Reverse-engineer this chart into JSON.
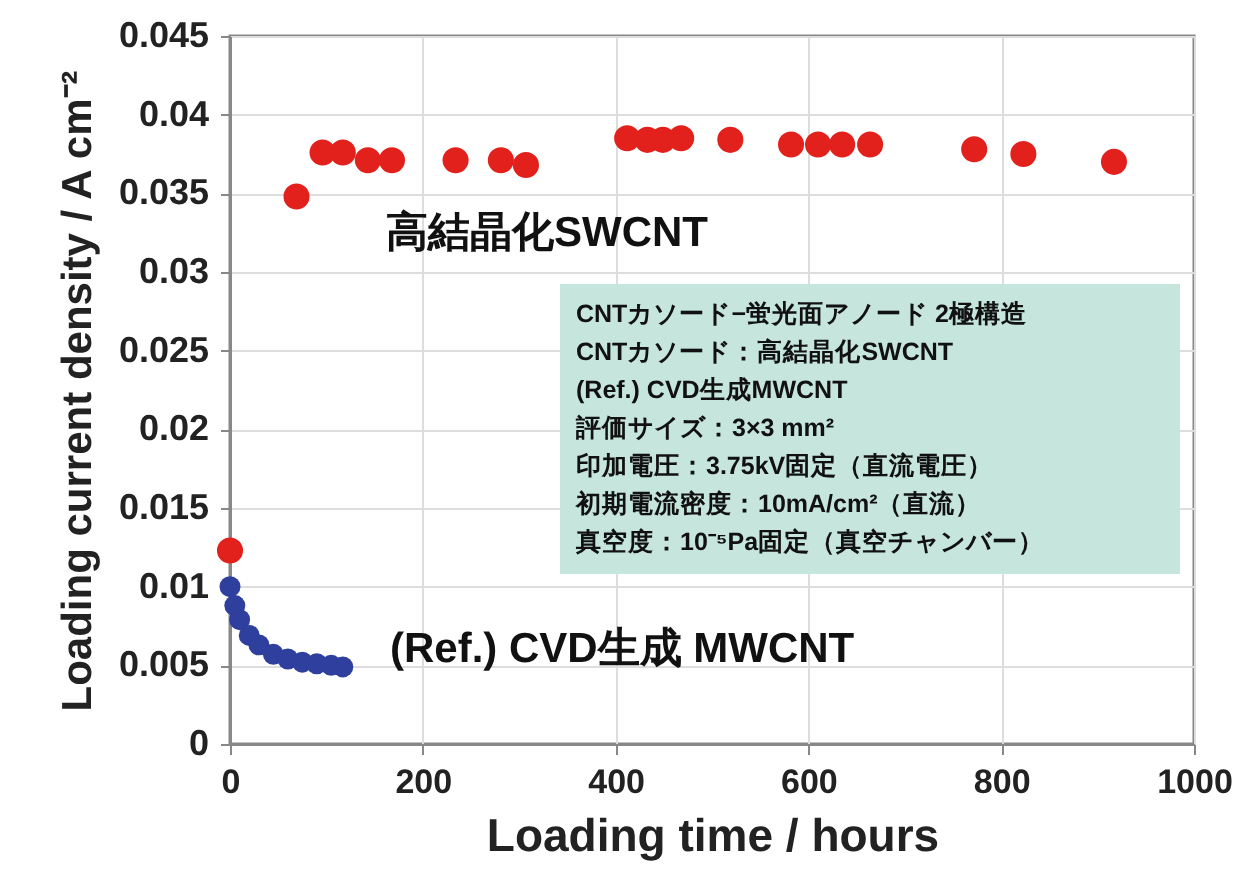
{
  "chart_data": {
    "type": "scatter",
    "xlabel": "Loading time / hours",
    "ylabel": "Loading current density / A cm⁻²",
    "xlim": [
      0,
      1000
    ],
    "xticks": [
      0,
      200,
      400,
      600,
      800,
      1000
    ],
    "ylim": [
      0,
      0.045
    ],
    "yticks": [
      0,
      0.005,
      0.01,
      0.015,
      0.02,
      0.025,
      0.03,
      0.035,
      0.04,
      0.045
    ],
    "grid": true,
    "legend": false,
    "marker": "circle",
    "series": [
      {
        "name": "高結晶化SWCNT",
        "color": "#e3211c",
        "x": [
          0,
          69,
          96,
          117,
          143,
          168,
          234,
          281,
          307,
          412,
          433,
          449,
          468,
          519,
          582,
          610,
          635,
          664,
          772,
          823,
          917
        ],
        "values": [
          0.0123,
          0.0348,
          0.0376,
          0.0376,
          0.0371,
          0.0371,
          0.0371,
          0.0371,
          0.0368,
          0.0385,
          0.0384,
          0.0384,
          0.0385,
          0.0384,
          0.0381,
          0.0381,
          0.0381,
          0.0381,
          0.0378,
          0.0375,
          0.037
        ]
      },
      {
        "name": "(Ref.) CVD生成 MWCNT",
        "color": "#2e3f9e",
        "x": [
          0,
          5,
          10,
          20,
          30,
          45,
          60,
          75,
          90,
          105,
          117
        ],
        "values": [
          0.01,
          0.0088,
          0.0079,
          0.0069,
          0.0063,
          0.0057,
          0.0054,
          0.0052,
          0.0051,
          0.005,
          0.0049
        ]
      }
    ],
    "annotations": [
      "CNTカソード−蛍光面アノード 2極構造",
      "CNTカソード：高結晶化SWCNT",
      "              (Ref.) CVD生成MWCNT",
      "評価サイズ：3×3 mm²",
      "印加電圧：3.75kV固定（直流電圧）",
      "初期電流密度：10mA/cm²（直流）",
      "真空度：10⁻⁵Pa固定（真空チャンバー）"
    ]
  }
}
